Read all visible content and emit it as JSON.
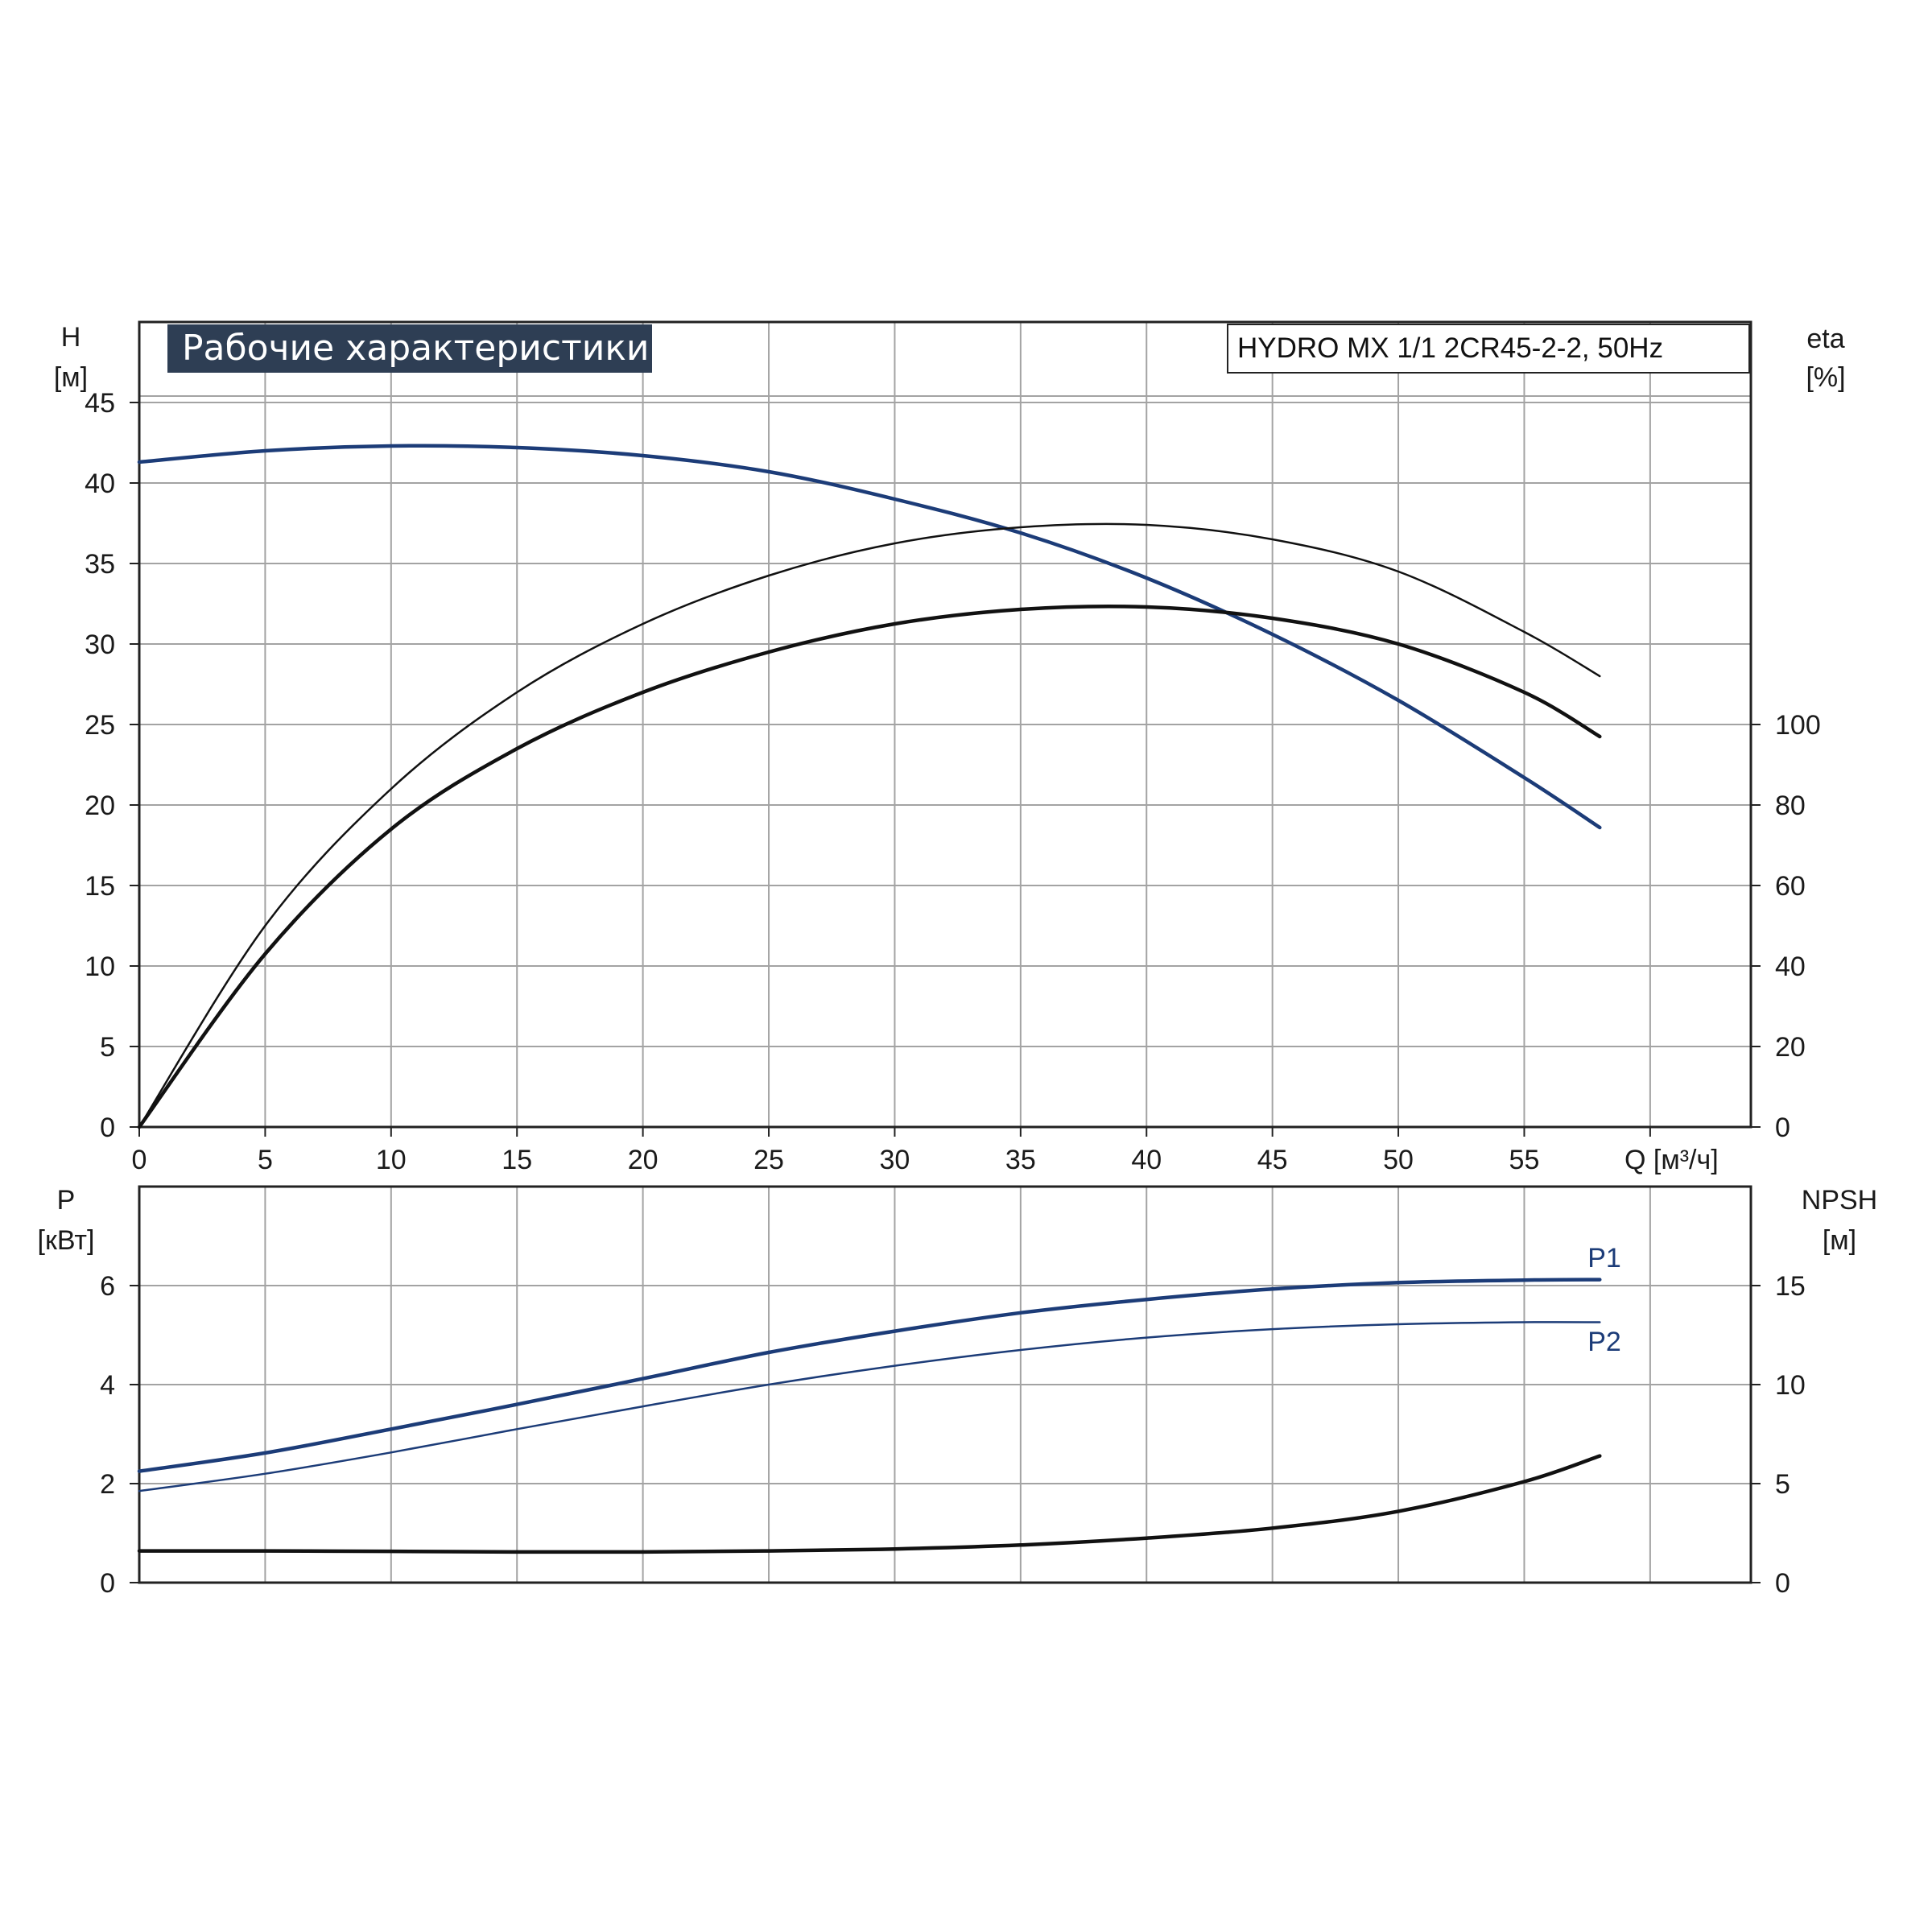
{
  "title": "Рабочие характеристики",
  "model_label": "HYDRO MX 1/1 2CR45-2-2, 50Hz",
  "colors": {
    "blue": "#1c3c78",
    "black": "#111111",
    "grid": "#a3a3a3",
    "title_bg": "#2e3e54"
  },
  "chart_data": [
    {
      "type": "line",
      "panel": "top",
      "x_ticks": [
        "0",
        "5",
        "10",
        "15",
        "20",
        "25",
        "30",
        "35",
        "40",
        "45",
        "50",
        "55"
      ],
      "xlabel": "Q [м³/ч]",
      "xlim": [
        0,
        64
      ],
      "y_left": {
        "label_line1": "H",
        "label_line2": "[м]",
        "ticks": [
          "0",
          "5",
          "10",
          "15",
          "20",
          "25",
          "30",
          "35",
          "40",
          "45"
        ],
        "lim": [
          0,
          50
        ]
      },
      "y_right": {
        "label_line1": "eta",
        "label_line2": "[%]",
        "ticks": [
          "0",
          "20",
          "40",
          "60",
          "80",
          "100"
        ],
        "lim": [
          0,
          100
        ]
      },
      "grid": true,
      "series": [
        {
          "axis": "left",
          "color": "blue",
          "width": 4.5,
          "x": [
            0,
            5,
            10,
            15,
            20,
            25,
            30,
            35,
            40,
            45,
            50,
            55,
            58
          ],
          "y": [
            41.3,
            42.0,
            42.3,
            42.2,
            41.7,
            40.7,
            39.0,
            36.9,
            34.1,
            30.6,
            26.5,
            21.7,
            18.6
          ]
        },
        {
          "axis": "right",
          "color": "black",
          "width": 2.5,
          "x": [
            0,
            5,
            10,
            15,
            20,
            25,
            30,
            35,
            40,
            45,
            50,
            55,
            58
          ],
          "y": [
            0,
            25,
            42,
            54,
            62.5,
            68.5,
            72.5,
            74.5,
            74.8,
            73.0,
            69.0,
            61.5,
            56
          ]
        },
        {
          "axis": "right",
          "color": "black",
          "width": 4.5,
          "x": [
            0,
            5,
            10,
            15,
            20,
            25,
            30,
            35,
            40,
            45,
            50,
            55,
            58
          ],
          "y": [
            0,
            21.5,
            37,
            47,
            54,
            59,
            62.5,
            64.3,
            64.6,
            63.2,
            60,
            54,
            48.5
          ]
        }
      ]
    },
    {
      "type": "line",
      "panel": "bottom",
      "xlim": [
        0,
        64
      ],
      "y_left": {
        "label_line1": "P",
        "label_line2": "[кВт]",
        "ticks": [
          "0",
          "2",
          "4",
          "6"
        ],
        "lim": [
          0,
          8
        ]
      },
      "y_right": {
        "label_line1": "NPSH",
        "label_line2": "[м]",
        "ticks": [
          "0",
          "5",
          "10",
          "15"
        ],
        "lim": [
          0,
          20
        ]
      },
      "grid": true,
      "series": [
        {
          "name": "P1",
          "axis": "left",
          "color": "blue",
          "width": 4.5,
          "x": [
            0,
            5,
            10,
            15,
            20,
            25,
            30,
            35,
            40,
            45,
            50,
            55,
            58
          ],
          "y": [
            2.25,
            2.62,
            3.1,
            3.6,
            4.12,
            4.65,
            5.08,
            5.45,
            5.72,
            5.93,
            6.06,
            6.11,
            6.12
          ]
        },
        {
          "name": "P2",
          "axis": "left",
          "color": "blue",
          "width": 2.5,
          "x": [
            0,
            5,
            10,
            15,
            20,
            25,
            30,
            35,
            40,
            45,
            50,
            55,
            58
          ],
          "y": [
            1.85,
            2.2,
            2.63,
            3.1,
            3.56,
            4.0,
            4.38,
            4.7,
            4.95,
            5.12,
            5.22,
            5.26,
            5.26
          ]
        },
        {
          "axis": "right",
          "color": "black",
          "width": 4.5,
          "x": [
            0,
            5,
            10,
            15,
            20,
            25,
            30,
            35,
            40,
            45,
            50,
            55,
            58
          ],
          "y": [
            1.6,
            1.6,
            1.58,
            1.55,
            1.55,
            1.6,
            1.7,
            1.9,
            2.25,
            2.75,
            3.6,
            5.1,
            6.4
          ]
        }
      ]
    }
  ]
}
